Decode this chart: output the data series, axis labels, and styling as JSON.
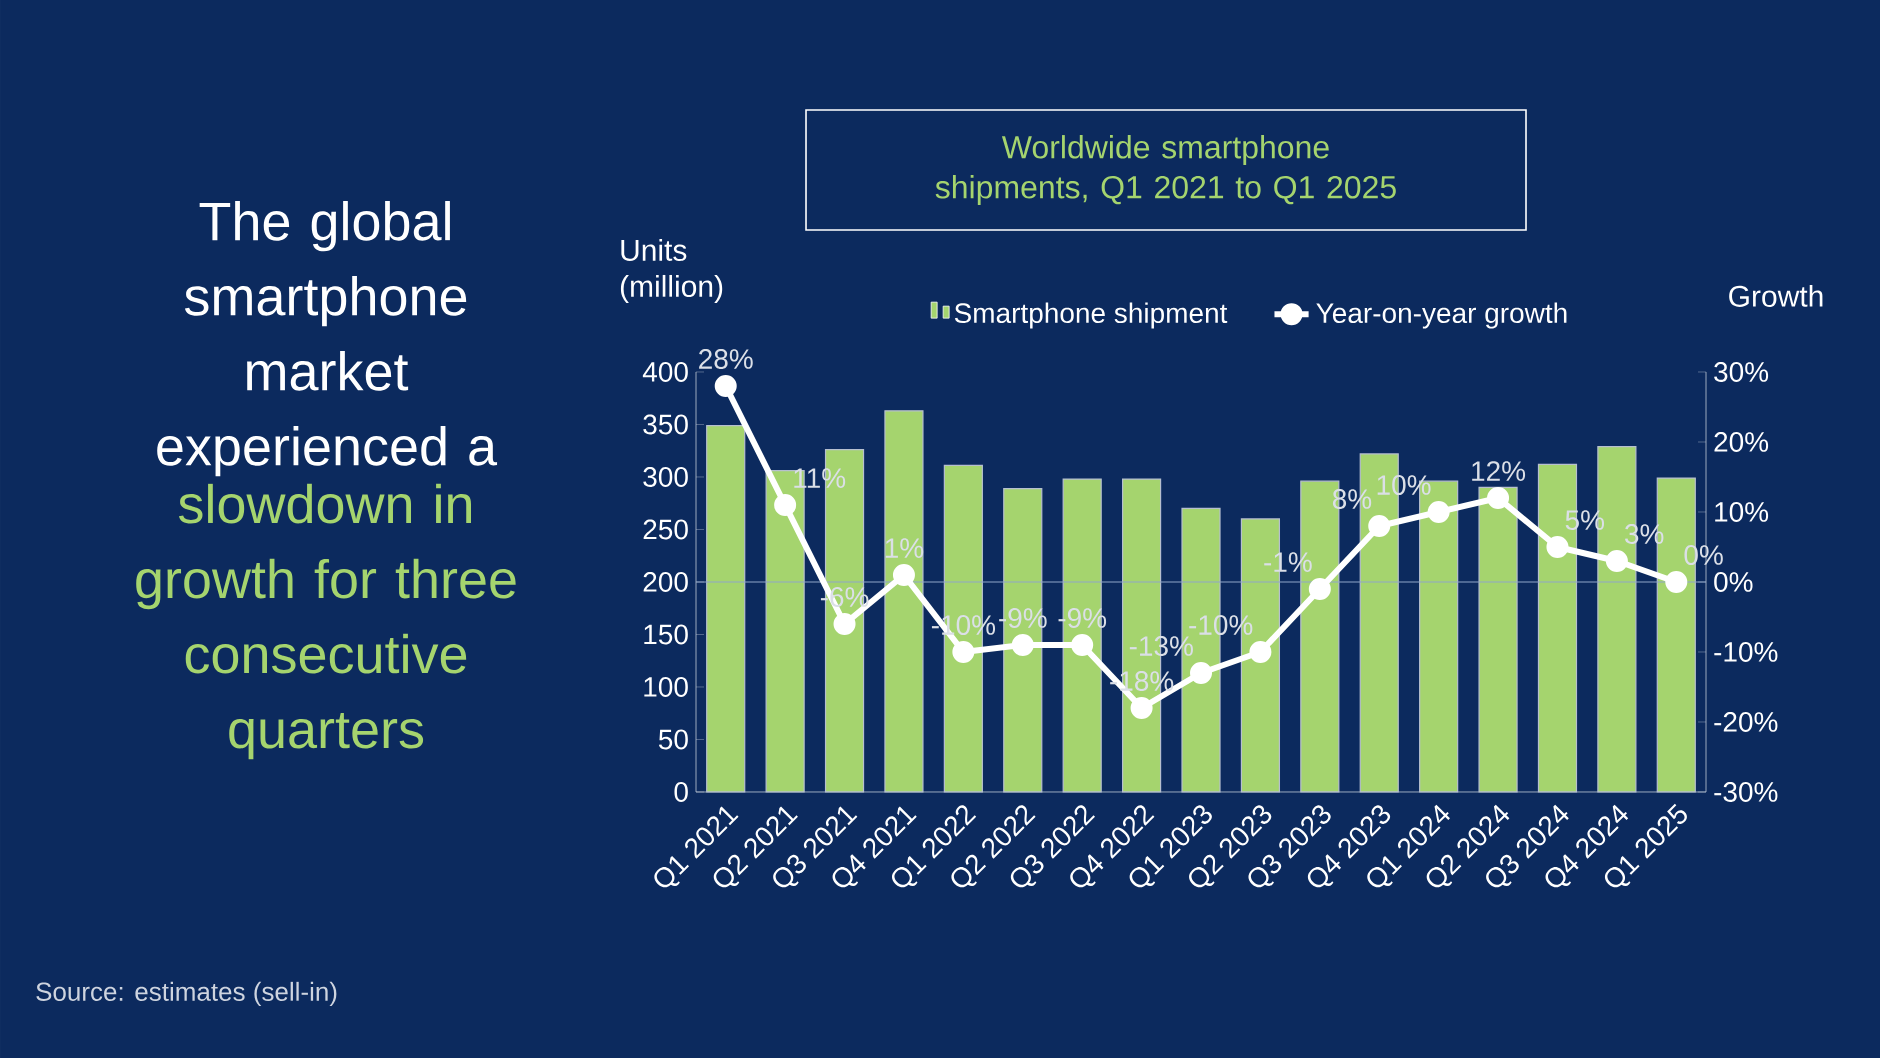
{
  "chart_data": {
    "type": "bar",
    "title": "Worldwide smartphone shipments, Q1 2021 to Q1 2025",
    "ylabel": "Units (million)",
    "y2label": "Growth",
    "categories": [
      "Q1 2021",
      "Q2 2021",
      "Q3 2021",
      "Q4 2021",
      "Q1 2022",
      "Q2 2022",
      "Q3 2022",
      "Q4 2022",
      "Q1 2023",
      "Q2 2023",
      "Q3 2023",
      "Q4 2023",
      "Q1 2024",
      "Q2 2024",
      "Q3 2024",
      "Q4 2024",
      "Q1 2025"
    ],
    "series": [
      {
        "name": "Smartphone shipment",
        "color": "#a5d46e",
        "values": [
          349,
          306,
          326,
          363,
          311,
          289,
          298,
          298,
          270,
          260,
          296,
          322,
          296,
          290,
          312,
          329,
          299
        ]
      },
      {
        "name": "Year-on-year growth",
        "type": "line",
        "axis": "y2",
        "color": "#ffffff",
        "marker": "circle",
        "values": [
          28,
          11,
          -6,
          1,
          -10,
          -9,
          -9,
          -18,
          -13,
          -10,
          -1,
          8,
          10,
          12,
          5,
          3,
          0
        ],
        "value_labels": [
          "28%",
          "11%",
          "-6%",
          "1%",
          "-10%",
          "-9%",
          "-9%",
          "-18%",
          "-13%",
          "-10%",
          "-1%",
          "8%",
          "10%",
          "12%",
          "5%",
          "3%",
          "0%"
        ]
      }
    ],
    "ylim": [
      0,
      400
    ],
    "yticks": [
      0,
      50,
      100,
      150,
      200,
      250,
      300,
      350,
      400
    ],
    "y2lim": [
      -30,
      30
    ],
    "y2ticks": [
      {
        "value": -30,
        "label": "-30%"
      },
      {
        "value": -20,
        "label": "-20%"
      },
      {
        "value": -10,
        "label": "-10%"
      },
      {
        "value": 0,
        "label": "0%"
      },
      {
        "value": 10,
        "label": "10%"
      },
      {
        "value": 20,
        "label": "20%"
      },
      {
        "value": 30,
        "label": "30%"
      }
    ],
    "ref_lines": [
      {
        "axis": "y2",
        "value": 0,
        "color": "#8fa6c8"
      }
    ],
    "legend": "top",
    "annotations": [
      "The global smartphone market experienced a",
      "slowdown in growth for three consecutive quarters",
      "Source: estimates (sell-in)"
    ]
  }
}
